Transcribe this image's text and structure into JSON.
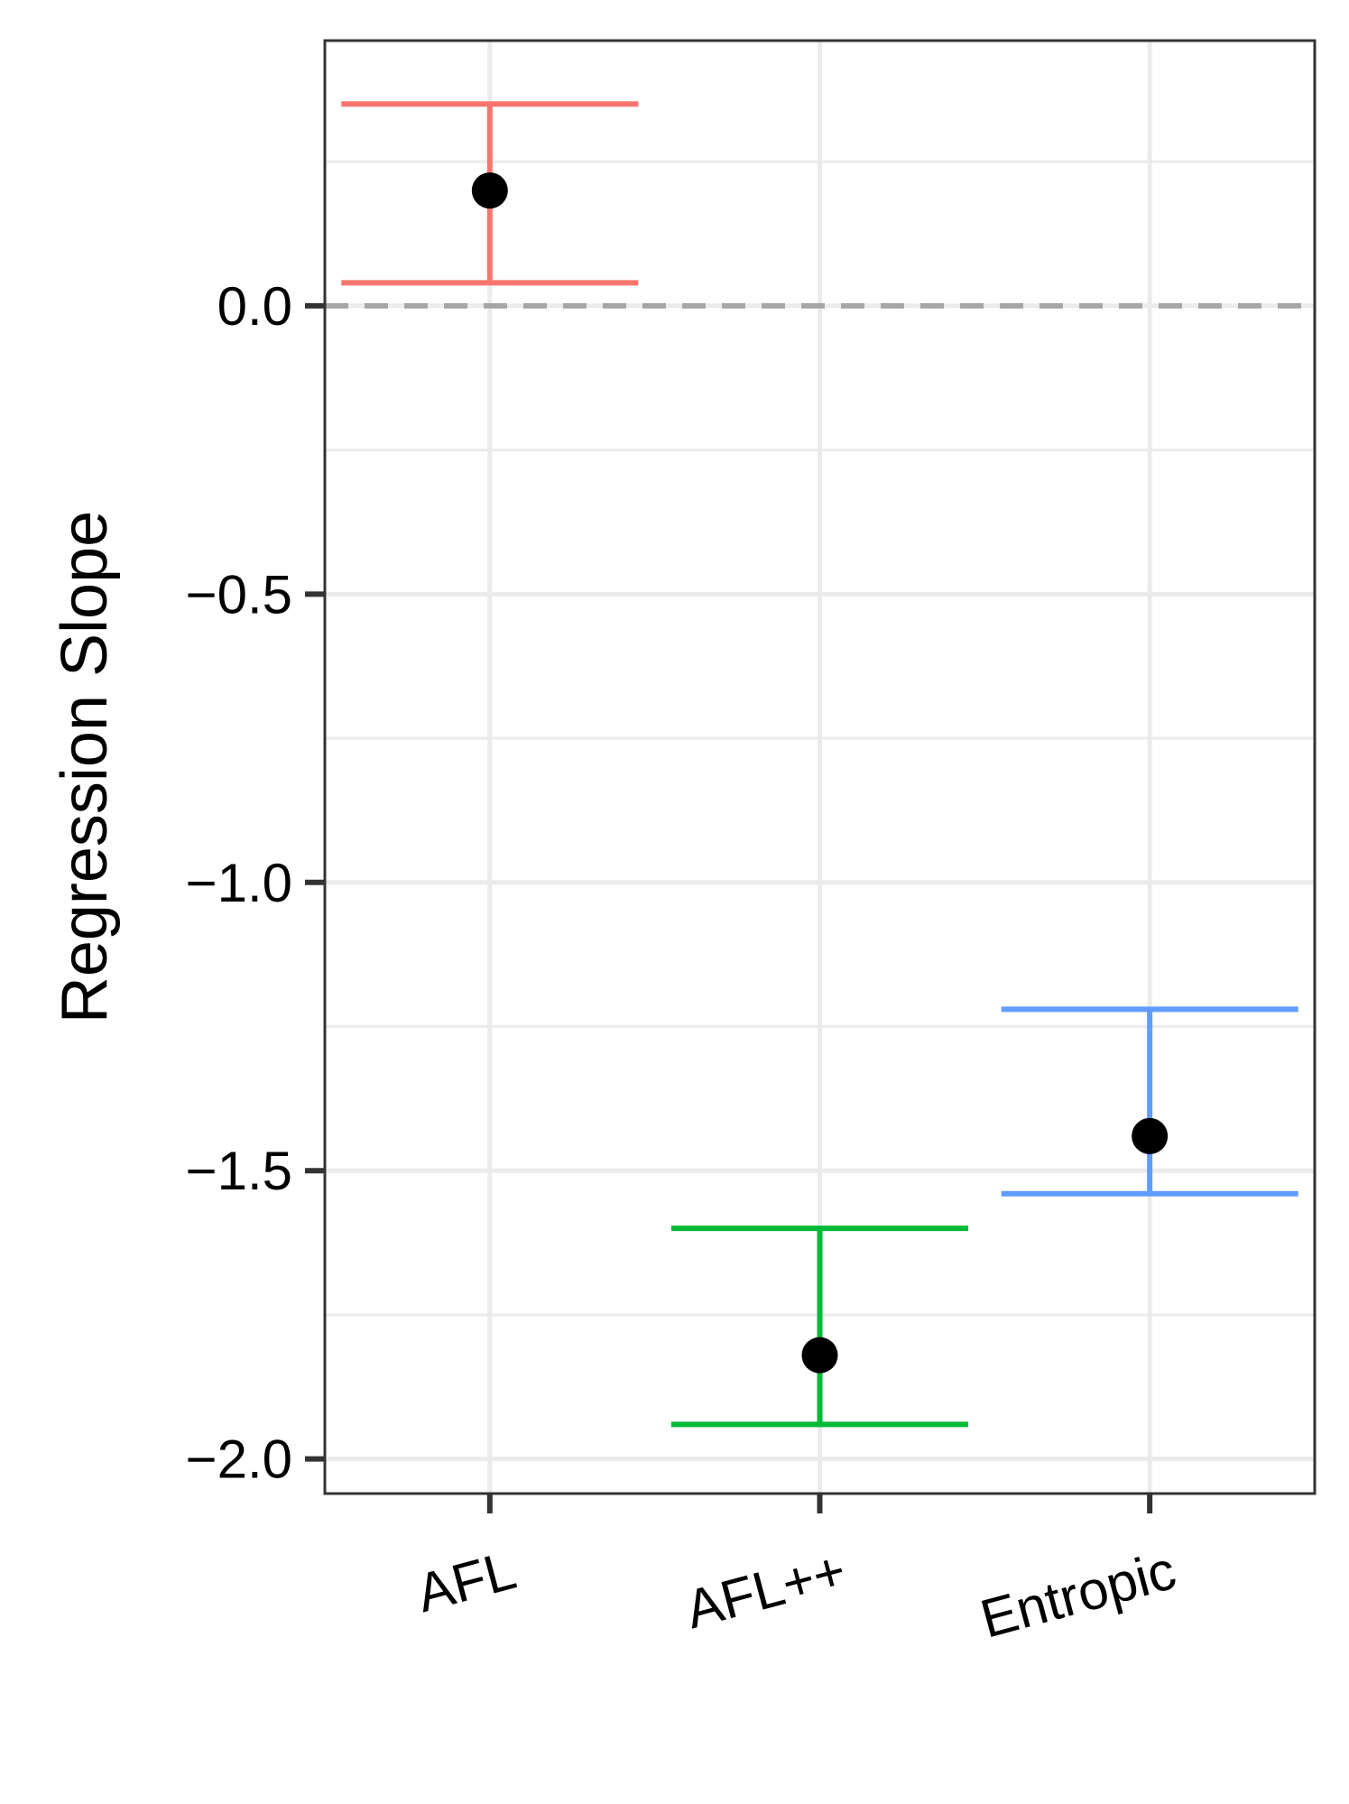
{
  "chart_data": {
    "type": "errorbar",
    "title": "",
    "xlabel": "",
    "ylabel": "Regression Slope",
    "categories": [
      "AFL",
      "AFL++",
      "Entropic"
    ],
    "series": [
      {
        "category": "AFL",
        "estimate": 0.2,
        "lower": 0.04,
        "upper": 0.35,
        "color": "#F8766D"
      },
      {
        "category": "AFL++",
        "estimate": -1.82,
        "lower": -1.94,
        "upper": -1.6,
        "color": "#00BA38"
      },
      {
        "category": "Entropic",
        "estimate": -1.44,
        "lower": -1.54,
        "upper": -1.22,
        "color": "#619CFF"
      }
    ],
    "y_ticks": [
      {
        "value": 0.0,
        "label": "0.0"
      },
      {
        "value": -0.5,
        "label": "−0.5"
      },
      {
        "value": -1.0,
        "label": "−1.0"
      },
      {
        "value": -1.5,
        "label": "−1.5"
      },
      {
        "value": -2.0,
        "label": "−2.0"
      }
    ],
    "ylim": [
      -2.06,
      0.46
    ],
    "reference_line": {
      "value": 0.0,
      "style": "dashed",
      "color": "#A6A6A6"
    },
    "point_color": "#000000",
    "grid": true,
    "legend": "none"
  }
}
